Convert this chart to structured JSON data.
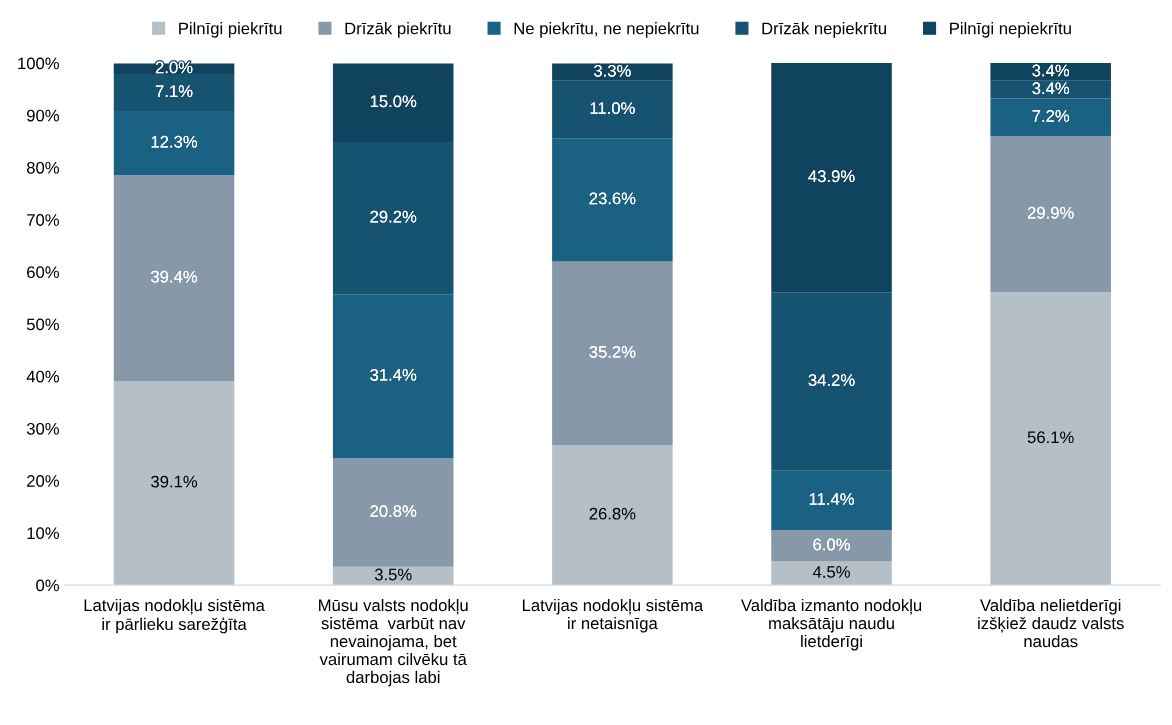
{
  "chart_data": {
    "type": "bar",
    "stacked": true,
    "categories": [
      "Latvijas nodokļu sistēma\nir pārlieku sarežģīta",
      "Mūsu valsts nodokļu\nsistēma  varbūt nav\nnevainojama, bet\nvairumam cilvēku tā\ndarbojas labi",
      "Latvijas nodokļu sistēma\nir netaisnīga",
      "Valdība izmanto nodokļu\nmaksātāju naudu\nlietderīgi",
      "Valdība nelietderīgi\nizšķiež daudz valsts\nnaudas"
    ],
    "series": [
      {
        "name": "Pilnīgi piekrītu",
        "color": "#b4bfc8",
        "values": [
          39.1,
          3.5,
          26.8,
          4.5,
          56.1
        ],
        "value_labels": [
          "39.1%",
          "3.5%",
          "26.8%",
          "4.5%",
          "56.1%"
        ]
      },
      {
        "name": "Drīzāk piekrītu",
        "color": "#8799a8",
        "values": [
          39.4,
          20.8,
          35.2,
          6.0,
          29.9
        ],
        "value_labels": [
          "39.4%",
          "20.8%",
          "35.2%",
          "6.0%",
          "29.9%"
        ]
      },
      {
        "name": "Ne piekrītu, ne nepiekrītu",
        "color": "#1a6183",
        "values": [
          12.3,
          31.4,
          23.6,
          11.4,
          7.2
        ],
        "value_labels": [
          "12.3%",
          "31.4%",
          "23.6%",
          "11.4%",
          "7.2%"
        ]
      },
      {
        "name": "Drīzāk nepiekrītu",
        "color": "#165371",
        "values": [
          7.1,
          29.2,
          11.0,
          34.2,
          3.4
        ],
        "value_labels": [
          "7.1%",
          "29.2%",
          "11.0%",
          "34.2%",
          "3.4%"
        ]
      },
      {
        "name": "Pilnīgi nepiekrītu",
        "color": "#10435e",
        "values": [
          2.0,
          15.0,
          3.3,
          43.9,
          3.4
        ],
        "value_labels": [
          "2.0%",
          "15.0%",
          "3.3%",
          "43.9%",
          "3.4%"
        ]
      }
    ],
    "ylim": [
      0,
      100
    ],
    "yticks": [
      {
        "value": 0,
        "label": "0%"
      },
      {
        "value": 10,
        "label": "10%"
      },
      {
        "value": 20,
        "label": "20%"
      },
      {
        "value": 30,
        "label": "30%"
      },
      {
        "value": 40,
        "label": "40%"
      },
      {
        "value": 50,
        "label": "50%"
      },
      {
        "value": 60,
        "label": "60%"
      },
      {
        "value": 70,
        "label": "70%"
      },
      {
        "value": 80,
        "label": "80%"
      },
      {
        "value": 90,
        "label": "90%"
      },
      {
        "value": 100,
        "label": "100%"
      }
    ],
    "grid": false,
    "legend": "top"
  }
}
